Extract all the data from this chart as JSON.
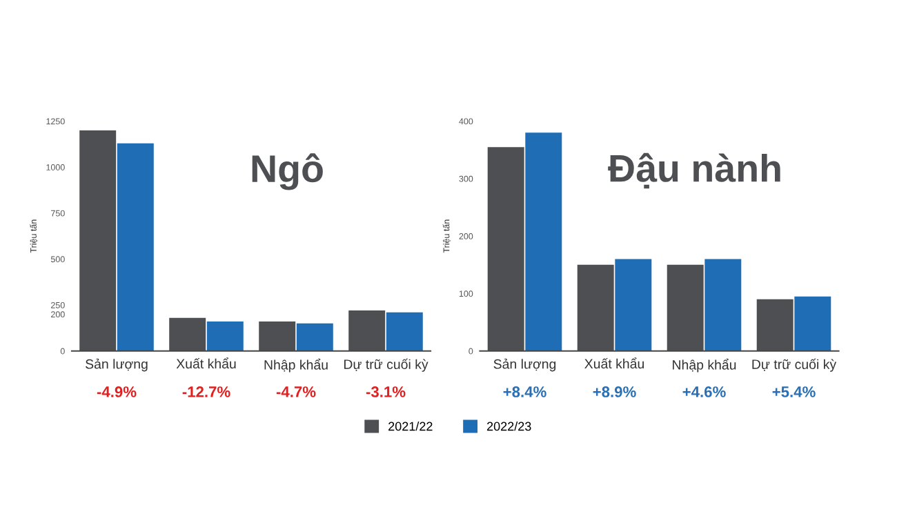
{
  "chart_data": [
    {
      "type": "bar",
      "title": "Ngô",
      "ylabel": "Triệu tấn",
      "categories": [
        "Sản lượng",
        "Xuất khẩu",
        "Nhập khẩu",
        "Dự trữ cuối kỳ"
      ],
      "series": [
        {
          "name": "2021/22",
          "color": "#4d4f53",
          "values": [
            1200,
            180,
            160,
            220
          ]
        },
        {
          "name": "2022/23",
          "color": "#1f6db5",
          "values": [
            1130,
            160,
            150,
            210
          ]
        }
      ],
      "ylim": [
        0,
        1250
      ],
      "yticks": [
        0,
        200,
        250,
        500,
        750,
        1000,
        1250
      ],
      "annotations": [
        "-4.9%",
        "-12.7%",
        "-4.7%",
        "-3.1%"
      ],
      "legend": "bottom"
    },
    {
      "type": "bar",
      "title": "Đậu nành",
      "ylabel": "Triệu tấn",
      "categories": [
        "Sản lượng",
        "Xuất khẩu",
        "Nhập khẩu",
        "Dự trữ cuối kỳ"
      ],
      "series": [
        {
          "name": "2021/22",
          "color": "#4d4f53",
          "values": [
            355,
            150,
            150,
            90
          ]
        },
        {
          "name": "2022/23",
          "color": "#1f6db5",
          "values": [
            380,
            160,
            160,
            95
          ]
        }
      ],
      "ylim": [
        0,
        400
      ],
      "yticks": [
        0,
        100,
        200,
        300,
        400
      ],
      "annotations": [
        "+8.4%",
        "+8.9%",
        "+4.6%",
        "+5.4%"
      ],
      "legend": "bottom"
    }
  ]
}
